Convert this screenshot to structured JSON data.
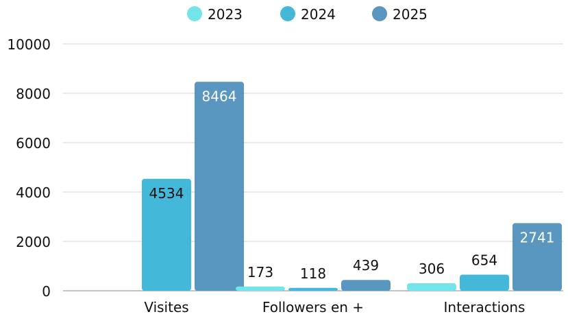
{
  "chart_data": {
    "type": "bar",
    "categories": [
      "Visites",
      "Followers en +",
      "Interactions"
    ],
    "series": [
      {
        "name": "2023",
        "color": "#72E4EA",
        "values": [
          0,
          173,
          306
        ],
        "label_color": "#111111"
      },
      {
        "name": "2024",
        "color": "#43B8D8",
        "values": [
          4534,
          118,
          654
        ],
        "label_color": "#111111"
      },
      {
        "name": "2025",
        "color": "#5A97C0",
        "values": [
          8464,
          439,
          2741
        ],
        "label_color": "#ffffff"
      }
    ],
    "data_labels": [
      [
        "",
        "173",
        "306"
      ],
      [
        "4534",
        "118",
        "654"
      ],
      [
        "8464",
        "439",
        "2741"
      ]
    ],
    "y_ticks": [
      "0",
      "2000",
      "4000",
      "6000",
      "8000",
      "10000"
    ],
    "ylim": [
      0,
      10000
    ],
    "grid": true,
    "legend": "top-center",
    "title": "",
    "xlabel": "",
    "ylabel": ""
  }
}
